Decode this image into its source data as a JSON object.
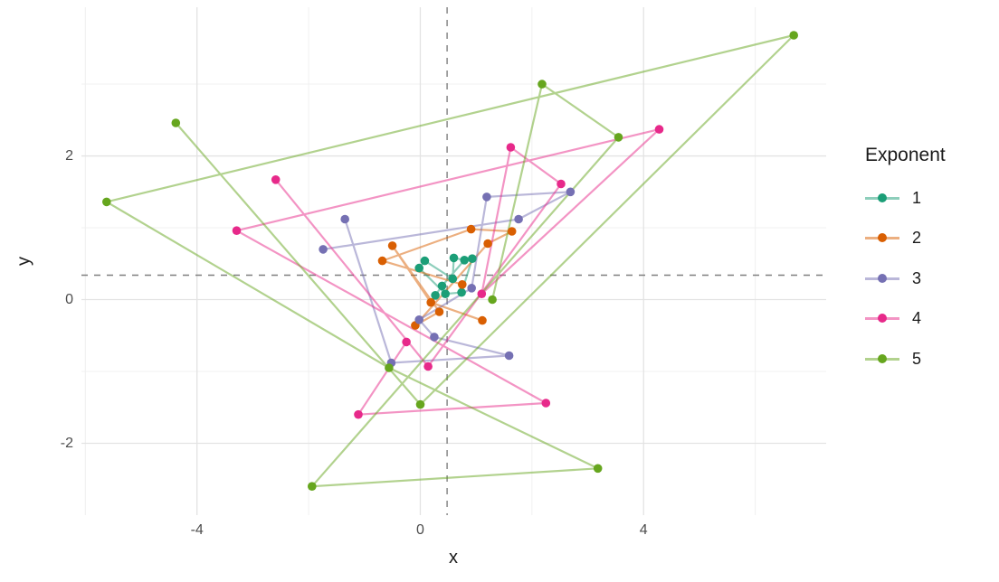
{
  "figure": {
    "background": "#FFFFFF"
  },
  "chart_data": {
    "type": "scatter",
    "subtype": "connected-scatter-path",
    "title": "",
    "xlabel": "x",
    "ylabel": "y",
    "xlim": [
      -6.07,
      7.27
    ],
    "ylim": [
      -3.0,
      4.07
    ],
    "x_ticks": [
      {
        "v": -4,
        "label": "-4"
      },
      {
        "v": 0,
        "label": "0"
      },
      {
        "v": 4,
        "label": "4"
      }
    ],
    "y_ticks": [
      {
        "v": -2,
        "label": "-2"
      },
      {
        "v": 0,
        "label": "0"
      },
      {
        "v": 2,
        "label": "2"
      }
    ],
    "x_minor_gridlines": [
      -6,
      -2,
      2,
      6
    ],
    "y_minor_gridlines": [
      -1,
      1,
      3
    ],
    "grid": {
      "major_color": "#E3E3E3",
      "minor_color": "#F0F0F0",
      "background": "#FFFFFF"
    },
    "reference_lines": {
      "vline_x": 0.48,
      "hline_y": 0.34,
      "color": "#7F7F7F",
      "style": "dashed"
    },
    "legend_title": "Exponent",
    "legend_position": "right",
    "line_opacity": 0.5,
    "point_radius": 4.8,
    "series": [
      {
        "name": "1",
        "color": "#1B9E77",
        "points": [
          [
            0.27,
            0.06
          ],
          [
            0.39,
            0.19
          ],
          [
            0.79,
            0.55
          ],
          [
            0.6,
            0.58
          ],
          [
            0.58,
            0.29
          ],
          [
            0.08,
            0.54
          ],
          [
            -0.02,
            0.44
          ],
          [
            0.45,
            0.08
          ],
          [
            0.74,
            0.1
          ],
          [
            0.93,
            0.57
          ]
        ]
      },
      {
        "name": "2",
        "color": "#D95F02",
        "points": [
          [
            0.75,
            0.21
          ],
          [
            -0.68,
            0.54
          ],
          [
            0.91,
            0.98
          ],
          [
            1.64,
            0.95
          ],
          [
            1.21,
            0.78
          ],
          [
            -0.09,
            -0.36
          ],
          [
            0.34,
            -0.17
          ],
          [
            -0.5,
            0.75
          ],
          [
            0.19,
            -0.04
          ],
          [
            1.11,
            -0.29
          ]
        ]
      },
      {
        "name": "3",
        "color": "#7570B3",
        "points": [
          [
            -1.74,
            0.7
          ],
          [
            1.76,
            1.12
          ],
          [
            2.69,
            1.5
          ],
          [
            1.19,
            1.43
          ],
          [
            0.92,
            0.16
          ],
          [
            -0.02,
            -0.28
          ],
          [
            0.25,
            -0.52
          ],
          [
            1.59,
            -0.78
          ],
          [
            -0.52,
            -0.88
          ],
          [
            -1.35,
            1.12
          ]
        ]
      },
      {
        "name": "4",
        "color": "#E7298A",
        "points": [
          [
            -2.59,
            1.67
          ],
          [
            0.14,
            -0.93
          ],
          [
            2.52,
            1.61
          ],
          [
            1.62,
            2.12
          ],
          [
            1.1,
            0.08
          ],
          [
            4.28,
            2.37
          ],
          [
            -3.29,
            0.96
          ],
          [
            2.25,
            -1.44
          ],
          [
            -1.11,
            -1.6
          ],
          [
            -0.25,
            -0.59
          ]
        ]
      },
      {
        "name": "5",
        "color": "#66A61E",
        "points": [
          [
            -4.38,
            2.46
          ],
          [
            0.0,
            -1.46
          ],
          [
            6.69,
            3.68
          ],
          [
            -5.62,
            1.36
          ],
          [
            -0.56,
            -0.95
          ],
          [
            3.18,
            -2.35
          ],
          [
            -1.94,
            -2.6
          ],
          [
            3.55,
            2.26
          ],
          [
            2.18,
            3.0
          ],
          [
            1.29,
            0.0
          ]
        ]
      }
    ]
  }
}
